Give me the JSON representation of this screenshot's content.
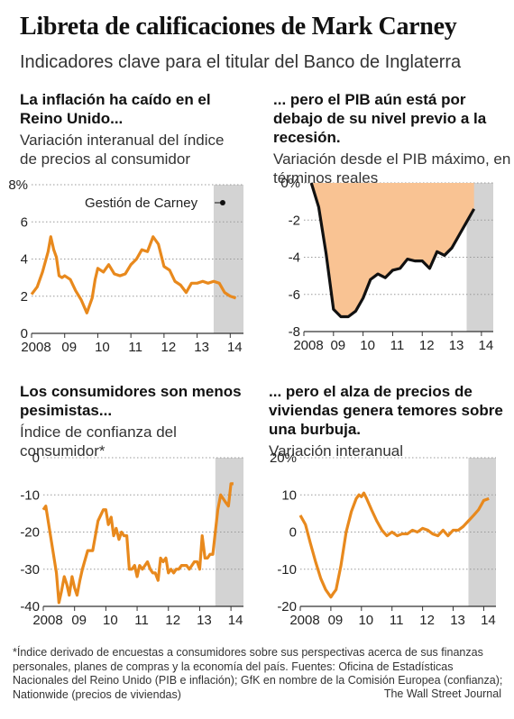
{
  "header": {
    "title": "Libreta de calificaciones de Mark Carney",
    "subtitle": "Indicadores clave para el titular del Banco de Inglaterra"
  },
  "panels": [
    {
      "headline": "La inflación ha caído en el Reino Unido...",
      "subhead": "Variación interanual del índice de precios al consumidor"
    },
    {
      "headline": "... pero el PIB aún está por debajo de su nivel previo a la recesión.",
      "subhead": "Variación desde el PIB máximo, en términos reales"
    },
    {
      "headline": "Los consumidores son menos pesimistas...",
      "subhead": "Índice de confianza del consumidor*"
    },
    {
      "headline": "... pero el alza de precios de viviendas genera temores sobre una burbuja.",
      "subhead": "Variación interanual"
    }
  ],
  "colors": {
    "line": "#e8891d",
    "fill": "#f9c393",
    "shade": "#d3d3d3",
    "axis": "#9a9a9a"
  },
  "footer": {
    "note": "*Índice derivado de encuestas a consumidores sobre sus perspectivas acerca de sus finanzas personales, planes de compras y la economía del país.  Fuentes: Oficina de Estadísticas Nacionales del Reino Unido (PIB e inflación); GfK en nombre de la Comisión Europea (confianza); Nationwide (precios de viviendas)",
    "credit": "The Wall Street Journal"
  },
  "chart_data": [
    {
      "type": "line",
      "xlim": [
        2008,
        2014.4
      ],
      "ylim": [
        0,
        8
      ],
      "yticks": [
        {
          "v": 8,
          "label": "8%"
        },
        {
          "v": 6,
          "label": "6"
        },
        {
          "v": 4,
          "label": "4"
        },
        {
          "v": 2,
          "label": "2"
        },
        {
          "v": 0,
          "label": "0"
        }
      ],
      "xticks": [
        {
          "v": 2008,
          "label": "2008"
        },
        {
          "v": 2009,
          "label": "09"
        },
        {
          "v": 2010,
          "label": "10"
        },
        {
          "v": 2011,
          "label": "11"
        },
        {
          "v": 2012,
          "label": "12"
        },
        {
          "v": 2013,
          "label": "13"
        },
        {
          "v": 2014,
          "label": "14"
        }
      ],
      "shade": [
        2013.5,
        2014.4
      ],
      "annotation": "Gestión de Carney",
      "x": [
        2008.0,
        2008.17,
        2008.33,
        2008.5,
        2008.58,
        2008.67,
        2008.75,
        2008.83,
        2008.92,
        2009.0,
        2009.17,
        2009.33,
        2009.5,
        2009.67,
        2009.75,
        2009.83,
        2009.92,
        2010.0,
        2010.17,
        2010.33,
        2010.5,
        2010.67,
        2010.83,
        2011.0,
        2011.17,
        2011.33,
        2011.5,
        2011.67,
        2011.75,
        2011.83,
        2012.0,
        2012.17,
        2012.33,
        2012.5,
        2012.67,
        2012.83,
        2013.0,
        2013.17,
        2013.33,
        2013.5,
        2013.67,
        2013.83,
        2014.0,
        2014.17
      ],
      "y": [
        2.1,
        2.5,
        3.3,
        4.4,
        5.2,
        4.5,
        4.1,
        3.1,
        3.0,
        3.1,
        2.9,
        2.3,
        1.8,
        1.1,
        1.5,
        1.9,
        2.9,
        3.5,
        3.3,
        3.7,
        3.2,
        3.1,
        3.2,
        3.7,
        4.0,
        4.5,
        4.4,
        5.2,
        5.0,
        4.8,
        3.6,
        3.4,
        2.8,
        2.6,
        2.2,
        2.7,
        2.7,
        2.8,
        2.7,
        2.8,
        2.7,
        2.2,
        2.0,
        1.9
      ]
    },
    {
      "type": "area",
      "xlim": [
        2008,
        2014.4
      ],
      "ylim": [
        -8,
        0
      ],
      "yticks": [
        {
          "v": 0,
          "label": "0%"
        },
        {
          "v": -2,
          "label": "-2"
        },
        {
          "v": -4,
          "label": "-4"
        },
        {
          "v": -6,
          "label": "-6"
        },
        {
          "v": -8,
          "label": "-8"
        }
      ],
      "xticks": [
        {
          "v": 2008,
          "label": "2008"
        },
        {
          "v": 2009,
          "label": "09"
        },
        {
          "v": 2010,
          "label": "10"
        },
        {
          "v": 2011,
          "label": "11"
        },
        {
          "v": 2012,
          "label": "12"
        },
        {
          "v": 2013,
          "label": "13"
        },
        {
          "v": 2014,
          "label": "14"
        }
      ],
      "shade": [
        2013.5,
        2014.4
      ],
      "x": [
        2008.25,
        2008.5,
        2008.75,
        2009.0,
        2009.25,
        2009.5,
        2009.75,
        2010.0,
        2010.25,
        2010.5,
        2010.75,
        2011.0,
        2011.25,
        2011.5,
        2011.75,
        2012.0,
        2012.25,
        2012.5,
        2012.75,
        2013.0,
        2013.25,
        2013.5,
        2013.75
      ],
      "y": [
        0.0,
        -1.3,
        -3.8,
        -6.8,
        -7.2,
        -7.2,
        -6.9,
        -6.2,
        -5.2,
        -4.9,
        -5.1,
        -4.7,
        -4.6,
        -4.1,
        -4.2,
        -4.2,
        -4.6,
        -3.7,
        -3.9,
        -3.5,
        -2.8,
        -2.1,
        -1.4
      ]
    },
    {
      "type": "line",
      "xlim": [
        2008,
        2014.4
      ],
      "ylim": [
        -40,
        0
      ],
      "yticks": [
        {
          "v": 0,
          "label": "0"
        },
        {
          "v": -10,
          "label": "-10"
        },
        {
          "v": -20,
          "label": "-20"
        },
        {
          "v": -30,
          "label": "-30"
        },
        {
          "v": -40,
          "label": "-40"
        }
      ],
      "xticks": [
        {
          "v": 2008,
          "label": "2008"
        },
        {
          "v": 2009,
          "label": "09"
        },
        {
          "v": 2010,
          "label": "10"
        },
        {
          "v": 2011,
          "label": "11"
        },
        {
          "v": 2012,
          "label": "12"
        },
        {
          "v": 2013,
          "label": "13"
        },
        {
          "v": 2014,
          "label": "14"
        }
      ],
      "shade": [
        2013.5,
        2014.4
      ],
      "x": [
        2008.0,
        2008.08,
        2008.25,
        2008.42,
        2008.5,
        2008.58,
        2008.67,
        2008.75,
        2008.83,
        2008.92,
        2009.0,
        2009.08,
        2009.17,
        2009.25,
        2009.42,
        2009.58,
        2009.75,
        2009.92,
        2010.0,
        2010.08,
        2010.17,
        2010.25,
        2010.33,
        2010.42,
        2010.5,
        2010.58,
        2010.67,
        2010.75,
        2010.83,
        2010.92,
        2011.0,
        2011.08,
        2011.17,
        2011.25,
        2011.33,
        2011.42,
        2011.5,
        2011.58,
        2011.67,
        2011.75,
        2011.83,
        2011.92,
        2012.0,
        2012.08,
        2012.17,
        2012.25,
        2012.33,
        2012.42,
        2012.5,
        2012.58,
        2012.67,
        2012.75,
        2012.83,
        2012.92,
        2013.0,
        2013.08,
        2013.17,
        2013.25,
        2013.33,
        2013.42,
        2013.5,
        2013.58,
        2013.67,
        2013.75,
        2013.83,
        2013.92,
        2014.0,
        2014.08
      ],
      "y": [
        -14,
        -13,
        -22,
        -31,
        -39,
        -36,
        -32,
        -34,
        -37,
        -32,
        -35,
        -37,
        -33,
        -30,
        -25,
        -25,
        -17,
        -14,
        -14,
        -18,
        -16,
        -21,
        -19,
        -22,
        -20,
        -21,
        -21,
        -30,
        -30,
        -29,
        -32,
        -29,
        -30,
        -29,
        -28,
        -30,
        -31,
        -31,
        -33,
        -27,
        -28,
        -27,
        -31,
        -30,
        -31,
        -30,
        -30,
        -29,
        -29,
        -29,
        -30,
        -29,
        -28,
        -28,
        -30,
        -21,
        -27,
        -27,
        -26,
        -26,
        -20,
        -14,
        -10,
        -11,
        -12,
        -13,
        -7,
        -7
      ]
    },
    {
      "type": "line",
      "xlim": [
        2008,
        2014.4
      ],
      "ylim": [
        -20,
        20
      ],
      "yticks": [
        {
          "v": 20,
          "label": "20%"
        },
        {
          "v": 10,
          "label": "10"
        },
        {
          "v": 0,
          "label": "0"
        },
        {
          "v": -10,
          "label": "-10"
        },
        {
          "v": -20,
          "label": "-20"
        }
      ],
      "xticks": [
        {
          "v": 2008,
          "label": "2008"
        },
        {
          "v": 2009,
          "label": "09"
        },
        {
          "v": 2010,
          "label": "10"
        },
        {
          "v": 2011,
          "label": "11"
        },
        {
          "v": 2012,
          "label": "12"
        },
        {
          "v": 2013,
          "label": "13"
        },
        {
          "v": 2014,
          "label": "14"
        }
      ],
      "shade": [
        2013.5,
        2014.4
      ],
      "x": [
        2008.0,
        2008.17,
        2008.33,
        2008.5,
        2008.67,
        2008.83,
        2009.0,
        2009.08,
        2009.17,
        2009.33,
        2009.5,
        2009.67,
        2009.83,
        2009.92,
        2010.0,
        2010.08,
        2010.17,
        2010.33,
        2010.5,
        2010.67,
        2010.83,
        2011.0,
        2011.17,
        2011.33,
        2011.5,
        2011.67,
        2011.83,
        2012.0,
        2012.17,
        2012.33,
        2012.5,
        2012.67,
        2012.83,
        2013.0,
        2013.17,
        2013.33,
        2013.5,
        2013.67,
        2013.83,
        2014.0,
        2014.17
      ],
      "y": [
        4.5,
        2.0,
        -3.0,
        -8.0,
        -12.5,
        -15.5,
        -17.5,
        -16.5,
        -15.5,
        -9.0,
        0.0,
        5.5,
        9.0,
        10.0,
        9.5,
        10.5,
        9.0,
        6.0,
        3.0,
        0.5,
        -1.0,
        0.0,
        -1.0,
        -0.5,
        -0.5,
        0.5,
        0.0,
        1.0,
        0.5,
        -0.5,
        -1.0,
        0.5,
        -1.0,
        0.5,
        0.5,
        1.5,
        3.0,
        4.5,
        6.0,
        8.5,
        9.0
      ]
    }
  ]
}
